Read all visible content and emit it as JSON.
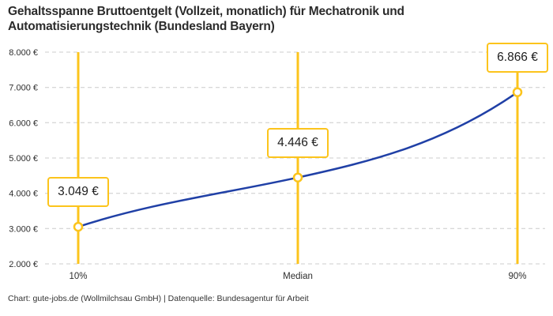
{
  "title": "Gehaltsspanne Bruttoentgelt (Vollzeit, monatlich) für Mechatronik und Automatisierungstechnik (Bundesland Bayern)",
  "footer": "Chart: gute-jobs.de (Wollmilchsau GmbH) | Datenquelle: Bundesagentur für Arbeit",
  "colors": {
    "accent_yellow": "#FCC41C",
    "line_blue": "#2040A6",
    "grid_gray": "#CCCCCC",
    "text_dark": "#2b2b2b",
    "tick_text": "#2e2e2e",
    "background": "#FFFFFF"
  },
  "chart_data": {
    "type": "line",
    "title": "Gehaltsspanne Bruttoentgelt (Vollzeit, monatlich) für Mechatronik und Automatisierungstechnik (Bundesland Bayern)",
    "categories": [
      "10%",
      "Median",
      "90%"
    ],
    "values": [
      3049,
      4446,
      6866
    ],
    "value_labels": [
      "3.049 €",
      "4.446 €",
      "6.866 €"
    ],
    "ytick_values": [
      2000,
      3000,
      4000,
      5000,
      6000,
      7000,
      8000
    ],
    "ytick_labels": [
      "2.000 €",
      "3.000 €",
      "4.000 €",
      "5.000 €",
      "6.000 €",
      "7.000 €",
      "8.000 €"
    ],
    "ylim": [
      2000,
      8000
    ],
    "xlabel": "",
    "ylabel": "",
    "legend": "none",
    "grid": "horizontal-dashed",
    "marker_style": "vertical yellow guide line with open circle point and value badge per category",
    "source_note": "Chart: gute-jobs.de (Wollmilchsau GmbH) | Datenquelle: Bundesagentur für Arbeit"
  }
}
